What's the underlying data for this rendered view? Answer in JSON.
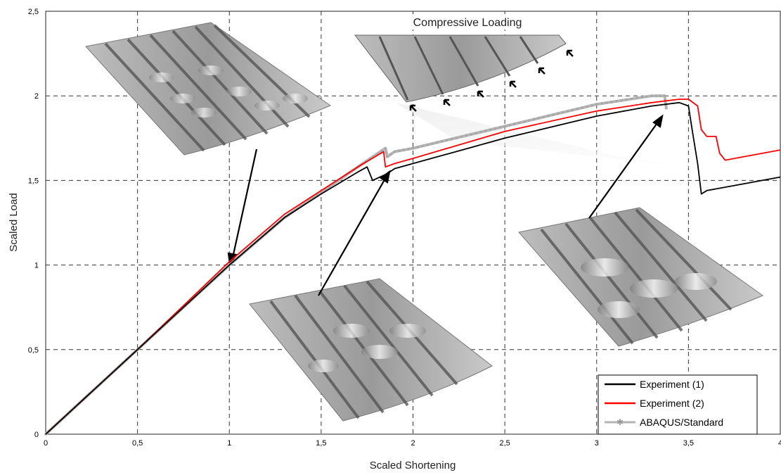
{
  "chart_data": {
    "type": "line",
    "xlabel": "Scaled Shortening",
    "ylabel": "Scaled Load",
    "xlim": [
      0,
      4
    ],
    "ylim": [
      0,
      2.5
    ],
    "x_ticks": [
      "0",
      "0,5",
      "1",
      "1,5",
      "2",
      "2,5",
      "3",
      "3,5",
      "4"
    ],
    "y_ticks": [
      "0",
      "0,5",
      "1",
      "1,5",
      "2",
      "2,5"
    ],
    "grid": true,
    "legend_position": "bottom-right",
    "annotation": "Compressive Loading",
    "series": [
      {
        "name": "Experiment (1)",
        "color": "#000000",
        "x": [
          0,
          0.5,
          1.0,
          1.3,
          1.5,
          1.7,
          1.75,
          1.78,
          1.86,
          1.9,
          2.0,
          2.5,
          3.0,
          3.3,
          3.45,
          3.5,
          3.52,
          3.55,
          3.57,
          3.6,
          3.8,
          4.0
        ],
        "y": [
          0,
          0.5,
          1.0,
          1.28,
          1.42,
          1.55,
          1.58,
          1.5,
          1.54,
          1.57,
          1.6,
          1.75,
          1.88,
          1.94,
          1.96,
          1.94,
          1.8,
          1.6,
          1.42,
          1.44,
          1.48,
          1.52
        ]
      },
      {
        "name": "Experiment (2)",
        "color": "#ff0000",
        "x": [
          0,
          0.5,
          1.0,
          1.3,
          1.5,
          1.7,
          1.84,
          1.85,
          1.9,
          2.0,
          2.5,
          3.0,
          3.3,
          3.45,
          3.5,
          3.55,
          3.57,
          3.6,
          3.65,
          3.67,
          3.7,
          3.8,
          4.0
        ],
        "y": [
          0,
          0.5,
          1.02,
          1.3,
          1.44,
          1.58,
          1.67,
          1.58,
          1.6,
          1.63,
          1.79,
          1.91,
          1.96,
          1.98,
          1.98,
          1.94,
          1.8,
          1.76,
          1.76,
          1.66,
          1.62,
          1.64,
          1.68
        ]
      },
      {
        "name": "ABAQUS/Standard",
        "color": "#b4b4b4",
        "x": [
          0,
          0.5,
          1.0,
          1.3,
          1.5,
          1.7,
          1.85,
          1.86,
          1.9,
          2.0,
          2.5,
          3.0,
          3.3,
          3.37,
          3.38
        ],
        "y": [
          0,
          0.5,
          1.0,
          1.28,
          1.43,
          1.58,
          1.69,
          1.64,
          1.67,
          1.69,
          1.82,
          1.95,
          2.0,
          2.0,
          1.92
        ]
      }
    ]
  }
}
